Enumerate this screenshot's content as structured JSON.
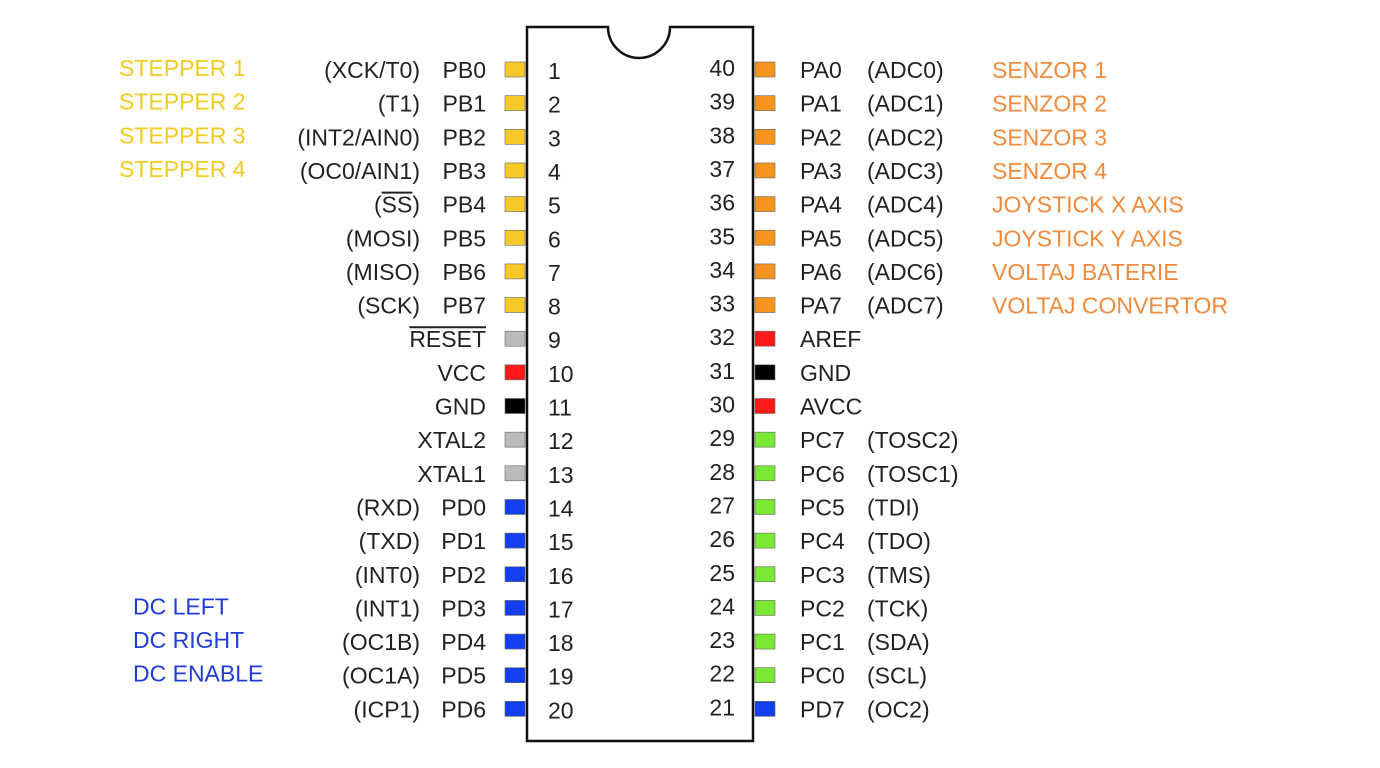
{
  "colors": {
    "yellow": "#f7c928",
    "orange": "#f5951f",
    "red": "#ff1a1a",
    "black": "#000000",
    "gray": "#bbbbbb",
    "green": "#7be835",
    "blue": "#1240f0",
    "annotation_yellow": "#f2cc1c",
    "annotation_orange": "#f08a3c",
    "annotation_blue": "#1f3bd9"
  },
  "left_pins": [
    {
      "num": "1",
      "name": "PB0",
      "alt": "(XCK/T0)",
      "color": "yellow",
      "annotation": "STEPPER 1",
      "annotation_color": "annotation_yellow"
    },
    {
      "num": "2",
      "name": "PB1",
      "alt": "(T1)",
      "color": "yellow",
      "annotation": "STEPPER 2",
      "annotation_color": "annotation_yellow"
    },
    {
      "num": "3",
      "name": "PB2",
      "alt": "(INT2/AIN0)",
      "color": "yellow",
      "annotation": "STEPPER 3",
      "annotation_color": "annotation_yellow"
    },
    {
      "num": "4",
      "name": "PB3",
      "alt": "(OC0/AIN1)",
      "color": "yellow",
      "annotation": "STEPPER 4",
      "annotation_color": "annotation_yellow"
    },
    {
      "num": "5",
      "name": "PB4",
      "alt": "(SS)",
      "alt_overline": "SS",
      "color": "yellow"
    },
    {
      "num": "6",
      "name": "PB5",
      "alt": "(MOSI)",
      "color": "yellow"
    },
    {
      "num": "7",
      "name": "PB6",
      "alt": "(MISO)",
      "color": "yellow"
    },
    {
      "num": "8",
      "name": "PB7",
      "alt": "(SCK)",
      "color": "yellow"
    },
    {
      "num": "9",
      "name": "RESET",
      "overline": true,
      "color": "gray"
    },
    {
      "num": "10",
      "name": "VCC",
      "color": "red"
    },
    {
      "num": "11",
      "name": "GND",
      "color": "black"
    },
    {
      "num": "12",
      "name": "XTAL2",
      "color": "gray"
    },
    {
      "num": "13",
      "name": "XTAL1",
      "color": "gray"
    },
    {
      "num": "14",
      "name": "PD0",
      "alt": "(RXD)",
      "color": "blue"
    },
    {
      "num": "15",
      "name": "PD1",
      "alt": "(TXD)",
      "color": "blue"
    },
    {
      "num": "16",
      "name": "PD2",
      "alt": "(INT0)",
      "color": "blue"
    },
    {
      "num": "17",
      "name": "PD3",
      "alt": "(INT1)",
      "color": "blue",
      "annotation": "DC LEFT",
      "annotation_color": "annotation_blue"
    },
    {
      "num": "18",
      "name": "PD4",
      "alt": "(OC1B)",
      "color": "blue",
      "annotation": "DC RIGHT",
      "annotation_color": "annotation_blue"
    },
    {
      "num": "19",
      "name": "PD5",
      "alt": "(OC1A)",
      "color": "blue",
      "annotation": "DC ENABLE",
      "annotation_color": "annotation_blue"
    },
    {
      "num": "20",
      "name": "PD6",
      "alt": "(ICP1)",
      "color": "blue"
    }
  ],
  "right_pins": [
    {
      "num": "40",
      "name": "PA0",
      "alt": "(ADC0)",
      "color": "orange",
      "annotation": "SENZOR 1",
      "annotation_color": "annotation_orange"
    },
    {
      "num": "39",
      "name": "PA1",
      "alt": "(ADC1)",
      "color": "orange",
      "annotation": "SENZOR 2",
      "annotation_color": "annotation_orange"
    },
    {
      "num": "38",
      "name": "PA2",
      "alt": "(ADC2)",
      "color": "orange",
      "annotation": "SENZOR 3",
      "annotation_color": "annotation_orange"
    },
    {
      "num": "37",
      "name": "PA3",
      "alt": "(ADC3)",
      "color": "orange",
      "annotation": "SENZOR 4",
      "annotation_color": "annotation_orange"
    },
    {
      "num": "36",
      "name": "PA4",
      "alt": "(ADC4)",
      "color": "orange",
      "annotation": "JOYSTICK X AXIS",
      "annotation_color": "annotation_orange"
    },
    {
      "num": "35",
      "name": "PA5",
      "alt": "(ADC5)",
      "color": "orange",
      "annotation": "JOYSTICK Y AXIS",
      "annotation_color": "annotation_orange"
    },
    {
      "num": "34",
      "name": "PA6",
      "alt": "(ADC6)",
      "color": "orange",
      "annotation": "VOLTAJ BATERIE",
      "annotation_color": "annotation_orange"
    },
    {
      "num": "33",
      "name": "PA7",
      "alt": "(ADC7)",
      "color": "orange",
      "annotation": "VOLTAJ CONVERTOR",
      "annotation_color": "annotation_orange"
    },
    {
      "num": "32",
      "name": "AREF",
      "color": "red"
    },
    {
      "num": "31",
      "name": "GND",
      "color": "black"
    },
    {
      "num": "30",
      "name": "AVCC",
      "color": "red"
    },
    {
      "num": "29",
      "name": "PC7",
      "alt": "(TOSC2)",
      "color": "green"
    },
    {
      "num": "28",
      "name": "PC6",
      "alt": "(TOSC1)",
      "color": "green"
    },
    {
      "num": "27",
      "name": "PC5",
      "alt": "(TDI)",
      "color": "green"
    },
    {
      "num": "26",
      "name": "PC4",
      "alt": "(TDO)",
      "color": "green"
    },
    {
      "num": "25",
      "name": "PC3",
      "alt": "(TMS)",
      "color": "green"
    },
    {
      "num": "24",
      "name": "PC2",
      "alt": "(TCK)",
      "color": "green"
    },
    {
      "num": "23",
      "name": "PC1",
      "alt": "(SDA)",
      "color": "green"
    },
    {
      "num": "22",
      "name": "PC0",
      "alt": "(SCL)",
      "color": "green"
    },
    {
      "num": "21",
      "name": "PD7",
      "alt": "(OC2)",
      "color": "blue"
    }
  ]
}
